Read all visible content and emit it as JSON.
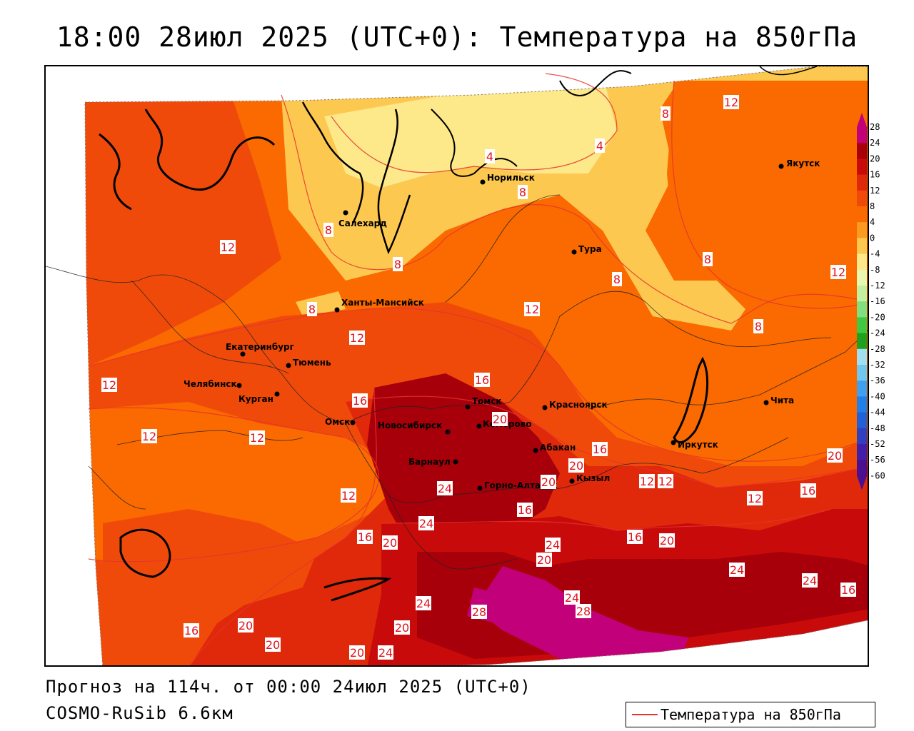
{
  "title": "18:00 28июл 2025 (UTC+0): Температура на 850гПа",
  "footer": {
    "forecast": "Прогноз на 114ч. от 00:00 24июл 2025 (UTC+0)",
    "model": "COSMO-RuSib 6.6км"
  },
  "legend": {
    "label": "Температура на 850гПа",
    "line_color": "#e8322e"
  },
  "colorbar": {
    "ticks": [
      "28",
      "24",
      "20",
      "16",
      "12",
      "8",
      "4",
      "0",
      "-4",
      "-8",
      "-12",
      "-16",
      "-20",
      "-24",
      "-28",
      "-32",
      "-36",
      "-40",
      "-44",
      "-48",
      "-52",
      "-56",
      "-60"
    ],
    "colors": [
      "#c2007a",
      "#a8000a",
      "#c80a0a",
      "#e0280a",
      "#f04a0a",
      "#fa6a00",
      "#fb9a20",
      "#fcc850",
      "#fde88a",
      "#e8f8b0",
      "#c0f0a0",
      "#80e080",
      "#40c840",
      "#20a020",
      "#a0e0f0",
      "#70c8f0",
      "#40a0f0",
      "#2080e8",
      "#2060d8",
      "#3040c0",
      "#4020a8",
      "#4a1090"
    ]
  },
  "cities": [
    {
      "name": "Салехард"
    },
    {
      "name": "Норильск"
    },
    {
      "name": "Якутск"
    },
    {
      "name": "Тура"
    },
    {
      "name": "Ханты-Мансийск"
    },
    {
      "name": "Екатеринбург"
    },
    {
      "name": "Тюмень"
    },
    {
      "name": "Челябинск"
    },
    {
      "name": "Курган"
    },
    {
      "name": "Омск"
    },
    {
      "name": "Томск"
    },
    {
      "name": "Новосибирск"
    },
    {
      "name": "Кемерово"
    },
    {
      "name": "Красноярск"
    },
    {
      "name": "Барнаул"
    },
    {
      "name": "Абакан"
    },
    {
      "name": "Горно-Алтайск"
    },
    {
      "name": "Кызыл"
    },
    {
      "name": "Иркутск"
    },
    {
      "name": "Чита"
    }
  ],
  "isotherm_labels": [
    "12",
    "8",
    "4",
    "4",
    "8",
    "12",
    "8",
    "8",
    "8",
    "8",
    "8",
    "12",
    "12",
    "8",
    "12",
    "12",
    "12",
    "16",
    "16",
    "20",
    "16",
    "12",
    "12",
    "12",
    "16",
    "20",
    "24",
    "24",
    "20",
    "20",
    "16",
    "16",
    "20",
    "24",
    "24",
    "28",
    "28",
    "20",
    "24",
    "24",
    "20",
    "16",
    "20",
    "20",
    "20",
    "24",
    "24",
    "12",
    "16",
    "12",
    "20",
    "16"
  ]
}
